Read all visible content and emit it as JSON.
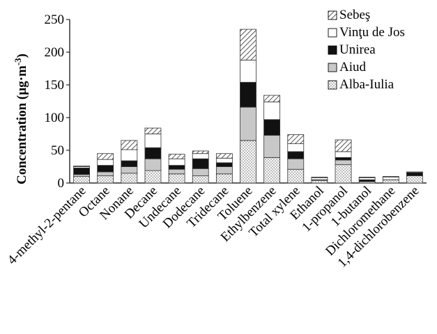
{
  "chart_data": {
    "type": "bar",
    "stacked": true,
    "categories": [
      "4-methyl-2-pentane",
      "Octane",
      "Nonane",
      "Decane",
      "Undecane",
      "Dodecane",
      "Tridecane",
      "Toluene",
      "Ethylbenzene",
      "Total xylene",
      "Ethanol",
      "1-propanol",
      "1-butanol",
      "Dichloromethane",
      "1,4-dichlorobenzene"
    ],
    "series": [
      {
        "name": "Alba-Iulia",
        "pattern": "dots",
        "values": [
          10,
          11,
          15,
          19,
          14,
          11,
          14,
          65,
          39,
          21,
          4,
          28,
          2,
          5,
          11
        ]
      },
      {
        "name": "Aiud",
        "pattern": "gray",
        "values": [
          3,
          6,
          10,
          18,
          7,
          11,
          11,
          51,
          34,
          16,
          1,
          7,
          0,
          0,
          0
        ]
      },
      {
        "name": "Unirea",
        "pattern": "black",
        "values": [
          10,
          10,
          9,
          17,
          6,
          15,
          6,
          38,
          24,
          11,
          0,
          4,
          3,
          0,
          5
        ]
      },
      {
        "name": "Vinţu de Jos",
        "pattern": "white",
        "values": [
          2,
          9,
          17,
          21,
          10,
          8,
          7,
          34,
          27,
          12,
          3,
          9,
          3,
          4,
          1
        ]
      },
      {
        "name": "Sebeş",
        "pattern": "hatch",
        "values": [
          1,
          9,
          14,
          9,
          7,
          4,
          7,
          47,
          10,
          14,
          1,
          18,
          1,
          1,
          0
        ]
      }
    ],
    "ylabel": "Concentration (µg·m⁻³)",
    "ylabel_main": "Concentration (µg·m",
    "ylabel_sup": "-3",
    "ylabel_close": ")",
    "ylim": [
      0,
      250
    ],
    "yticks": [
      "0",
      "50",
      "100",
      "150",
      "200",
      "250"
    ],
    "legend_placement": "top-right",
    "legend_order": [
      "Sebeş",
      "Vinţu de Jos",
      "Unirea",
      "Aiud",
      "Alba-Iulia"
    ],
    "grid": false,
    "colors": {
      "bar_outline": "#333333",
      "gray_fill": "#c8c8c8",
      "black_fill": "#111111",
      "hatch_line": "#555555",
      "dot": "#6a6a6a"
    }
  }
}
